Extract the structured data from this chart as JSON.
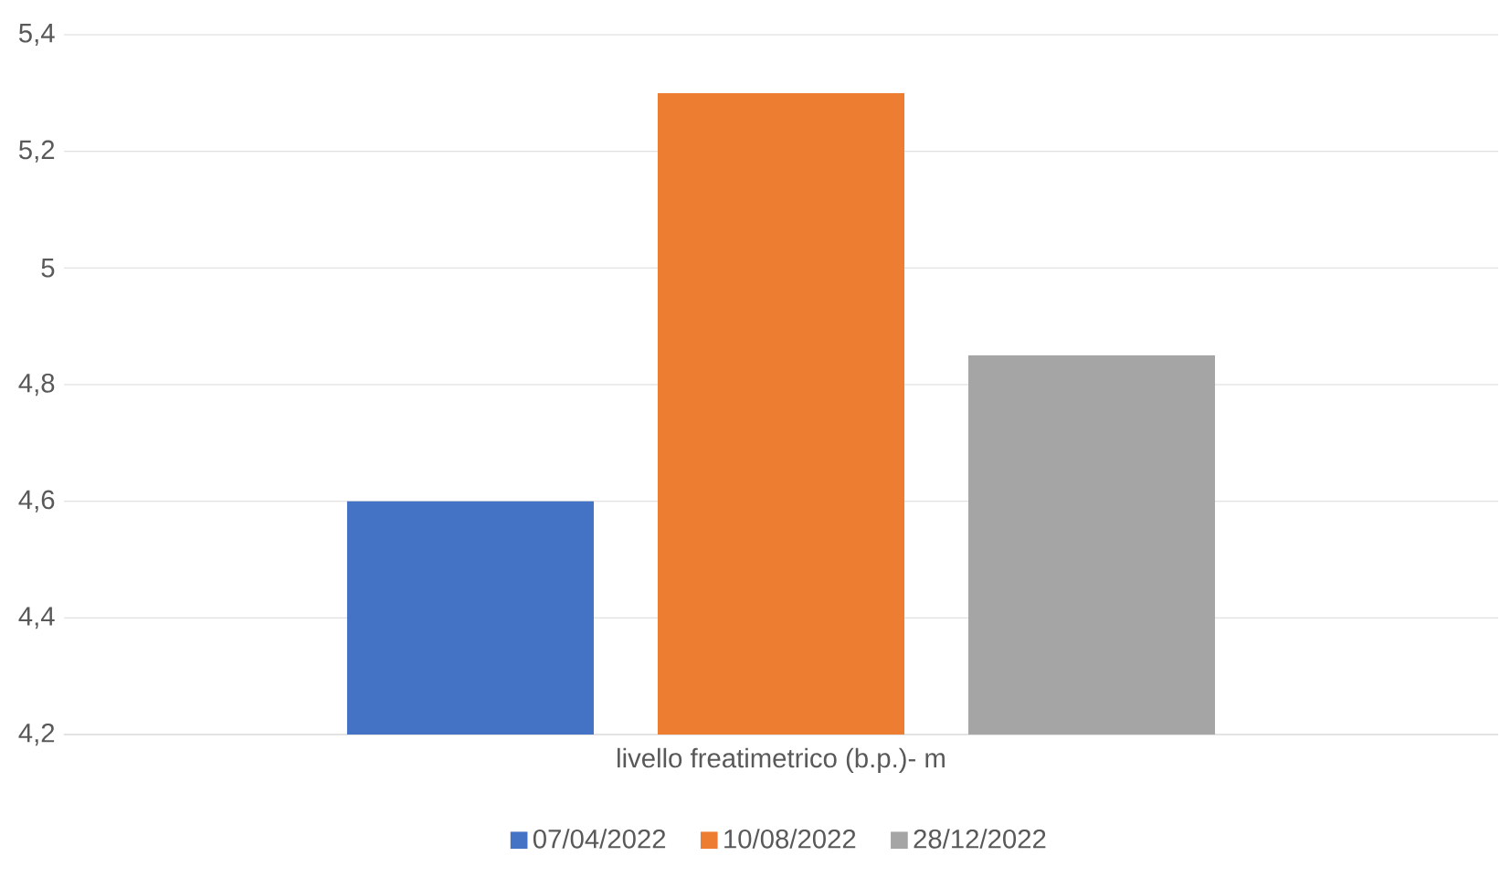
{
  "chart_data": {
    "type": "bar",
    "categories": [
      "livello freatimetrico (b.p.)- m"
    ],
    "series": [
      {
        "name": "07/04/2022",
        "color": "#4472c4",
        "values": [
          4.6
        ]
      },
      {
        "name": "10/08/2022",
        "color": "#ed7d31",
        "values": [
          5.3
        ]
      },
      {
        "name": "28/12/2022",
        "color": "#a5a5a5",
        "values": [
          4.85
        ]
      }
    ],
    "ylim": [
      4.2,
      5.4
    ],
    "yticks": [
      {
        "value": 4.2,
        "label": "4,2"
      },
      {
        "value": 4.4,
        "label": "4,4"
      },
      {
        "value": 4.6,
        "label": "4,6"
      },
      {
        "value": 4.8,
        "label": "4,8"
      },
      {
        "value": 5,
        "label": "5"
      },
      {
        "value": 5.2,
        "label": "5,2"
      },
      {
        "value": 5.4,
        "label": "5,4"
      }
    ],
    "grid": "y",
    "legend": "bottom"
  }
}
